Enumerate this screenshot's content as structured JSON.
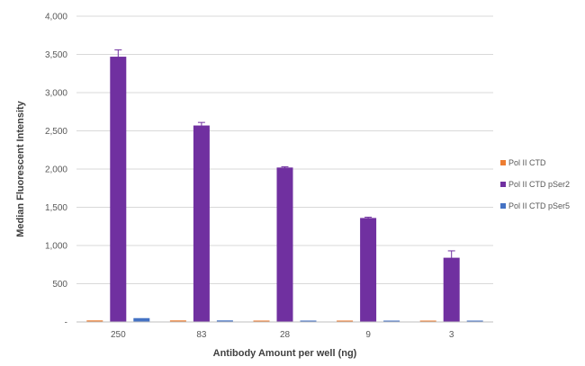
{
  "chart_data": {
    "type": "bar",
    "title": "",
    "xlabel": "Antibody Amount per well (ng)",
    "ylabel": "Median Fluorescent Intensity",
    "categories": [
      "250",
      "83",
      "28",
      "9",
      "3"
    ],
    "ylim": [
      0,
      4000
    ],
    "yticks": [
      0,
      500,
      1000,
      1500,
      2000,
      2500,
      3000,
      3500,
      4000
    ],
    "ytick_labels": [
      "-",
      "500",
      "1,000",
      "1,500",
      "2,000",
      "2,500",
      "3,000",
      "3,500",
      "4,000"
    ],
    "grid": true,
    "legend_position": "right",
    "series": [
      {
        "name": "Pol II CTD",
        "color": "#ed7d31",
        "values": [
          20,
          20,
          18,
          18,
          15
        ],
        "errors": [
          0,
          0,
          0,
          0,
          0
        ]
      },
      {
        "name": "Pol II CTD pSer2",
        "color": "#7030a0",
        "values": [
          3470,
          2570,
          2020,
          1360,
          840
        ],
        "errors": [
          90,
          40,
          10,
          10,
          90
        ]
      },
      {
        "name": "Pol II CTD pSer5",
        "color": "#4472c4",
        "values": [
          50,
          20,
          18,
          12,
          10
        ],
        "errors": [
          0,
          0,
          0,
          0,
          0
        ]
      }
    ]
  }
}
